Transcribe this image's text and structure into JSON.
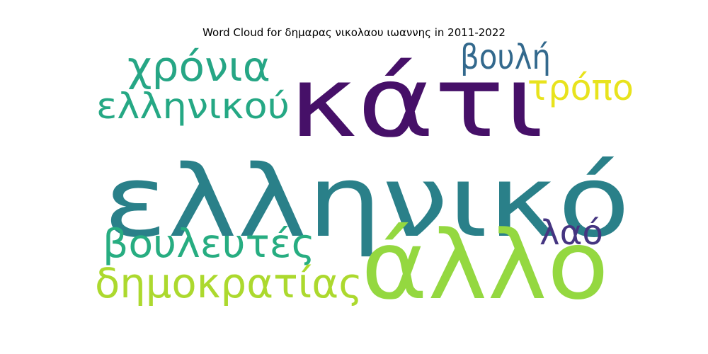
{
  "title": "Word Cloud for δημαρας νικολαου ιωαννης in 2011-2022",
  "words": [
    {
      "text": "ελληνικό",
      "color": "#2a8089"
    },
    {
      "text": "κάτι",
      "color": "#461068"
    },
    {
      "text": "άλλο",
      "color": "#94d840"
    },
    {
      "text": "χρόνια",
      "color": "#26a685"
    },
    {
      "text": "ελληνικού",
      "color": "#25a884"
    },
    {
      "text": "βουλή",
      "color": "#33698d"
    },
    {
      "text": "τρόπο",
      "color": "#e8e31d"
    },
    {
      "text": "βουλευτές",
      "color": "#27ad81"
    },
    {
      "text": "λαό",
      "color": "#453581"
    },
    {
      "text": "δημοκρατίας",
      "color": "#acd92e"
    }
  ]
}
